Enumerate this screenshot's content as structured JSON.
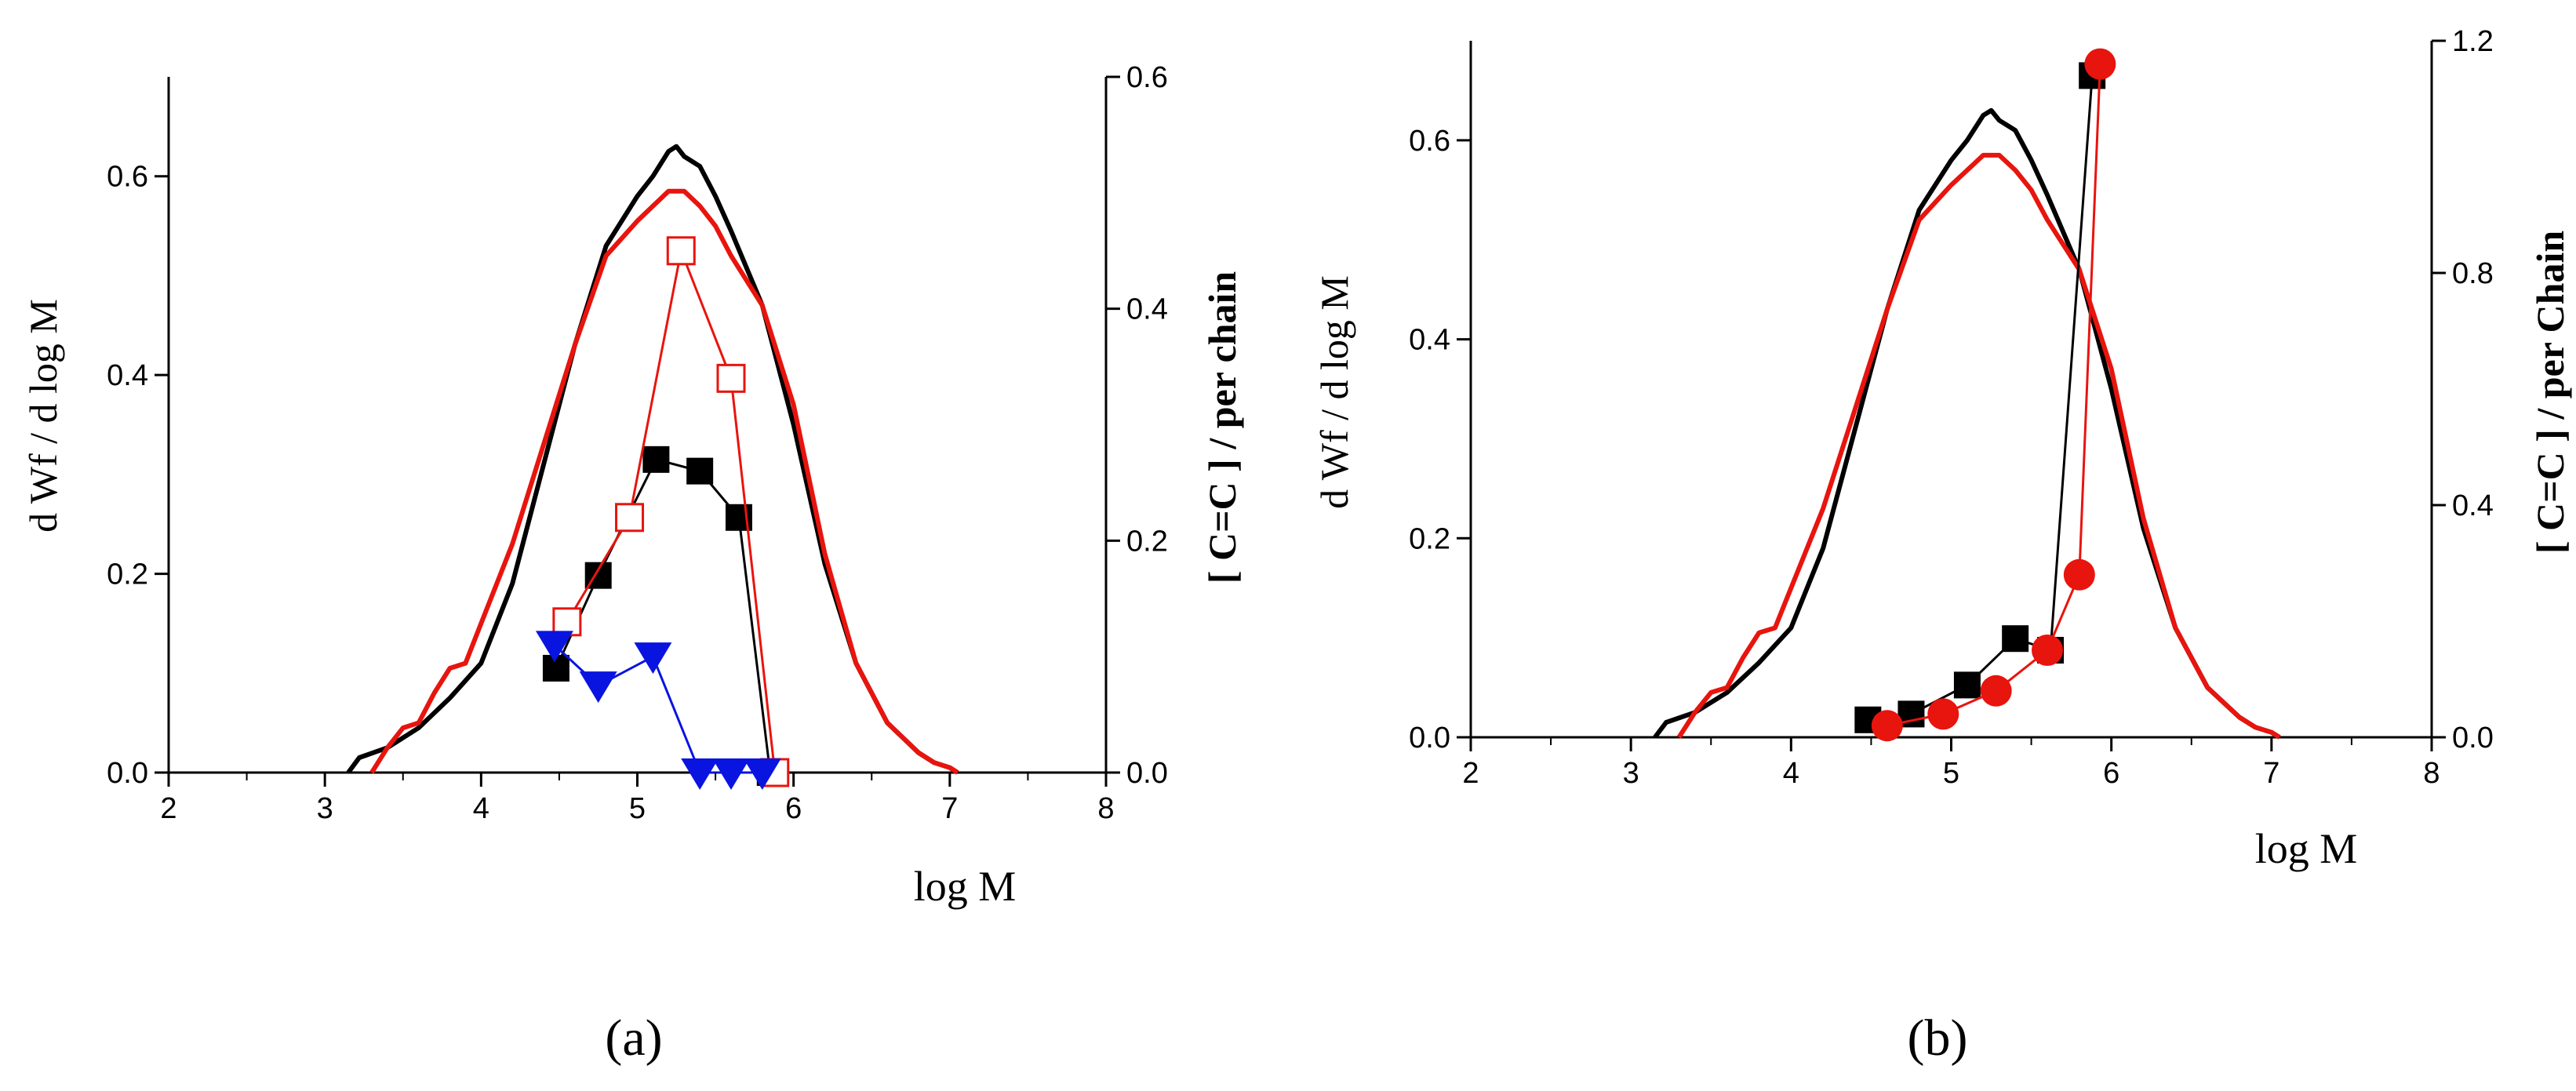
{
  "chart_data": [
    {
      "type": "line",
      "panel_label": "(a)",
      "xlabel": "log M",
      "ylabel_left": "d Wf / d log M",
      "ylabel_right": "[ C=C ] / per chain",
      "xlim": [
        2,
        8
      ],
      "ylim_left": [
        0,
        0.7
      ],
      "ylim_right": [
        0,
        0.6
      ],
      "xticks": [
        2,
        3,
        4,
        5,
        6,
        7,
        8
      ],
      "yticks_left": [
        0.0,
        0.2,
        0.4,
        0.6
      ],
      "yticks_right": [
        0.0,
        0.2,
        0.4,
        0.6
      ],
      "series": [
        {
          "name": "MWD black",
          "kind": "curve",
          "axis": "left",
          "color": "#000000",
          "x": [
            3.15,
            3.22,
            3.4,
            3.6,
            3.8,
            4.0,
            4.2,
            4.4,
            4.6,
            4.8,
            5.0,
            5.1,
            5.2,
            5.25,
            5.3,
            5.35,
            5.4,
            5.5,
            5.6,
            5.8,
            6.0,
            6.2,
            6.4,
            6.6,
            6.8,
            6.9,
            7.0,
            7.05
          ],
          "y": [
            0,
            0.015,
            0.025,
            0.045,
            0.075,
            0.11,
            0.19,
            0.31,
            0.43,
            0.53,
            0.58,
            0.6,
            0.625,
            0.63,
            0.62,
            0.615,
            0.61,
            0.58,
            0.545,
            0.47,
            0.35,
            0.21,
            0.11,
            0.05,
            0.02,
            0.01,
            0.005,
            0
          ]
        },
        {
          "name": "MWD red",
          "kind": "curve",
          "axis": "left",
          "color": "#e8140e",
          "x": [
            3.3,
            3.4,
            3.5,
            3.6,
            3.7,
            3.8,
            3.9,
            4.0,
            4.2,
            4.4,
            4.6,
            4.8,
            5.0,
            5.1,
            5.2,
            5.3,
            5.4,
            5.5,
            5.6,
            5.8,
            6.0,
            6.2,
            6.4,
            6.6,
            6.8,
            6.9,
            7.0,
            7.05
          ],
          "y": [
            0,
            0.025,
            0.045,
            0.05,
            0.08,
            0.105,
            0.11,
            0.15,
            0.23,
            0.33,
            0.43,
            0.52,
            0.555,
            0.57,
            0.585,
            0.585,
            0.57,
            0.55,
            0.52,
            0.47,
            0.37,
            0.22,
            0.11,
            0.05,
            0.02,
            0.01,
            0.005,
            0
          ]
        },
        {
          "name": "filled squares",
          "kind": "markers",
          "marker": "square-filled",
          "axis": "right",
          "color": "#000000",
          "x": [
            4.48,
            4.75,
            5.12,
            5.4,
            5.65,
            5.85
          ],
          "y": [
            0.09,
            0.17,
            0.27,
            0.26,
            0.22,
            0.0
          ]
        },
        {
          "name": "open squares",
          "kind": "markers",
          "marker": "square-open",
          "axis": "right",
          "color": "#e8140e",
          "x": [
            4.55,
            4.95,
            5.28,
            5.6,
            5.88
          ],
          "y": [
            0.13,
            0.22,
            0.45,
            0.34,
            0.0
          ]
        },
        {
          "name": "triangles",
          "kind": "markers",
          "marker": "triangle-down",
          "axis": "right",
          "color": "#0a14e0",
          "x": [
            4.47,
            4.75,
            5.1,
            5.4,
            5.6,
            5.8
          ],
          "y": [
            0.11,
            0.075,
            0.1,
            0.0,
            0.0,
            0.0
          ]
        }
      ]
    },
    {
      "type": "line",
      "panel_label": "(b)",
      "xlabel": "log M",
      "ylabel_left": "d Wf / d log M",
      "ylabel_right": "[ C=C ] / per Chain",
      "xlim": [
        2,
        8
      ],
      "ylim_left": [
        0,
        0.7
      ],
      "ylim_right": [
        0,
        1.2
      ],
      "xticks": [
        2,
        3,
        4,
        5,
        6,
        7,
        8
      ],
      "yticks_left": [
        0.0,
        0.2,
        0.4,
        0.6
      ],
      "yticks_right": [
        0.0,
        0.4,
        0.8,
        1.2
      ],
      "series": [
        {
          "name": "MWD black",
          "kind": "curve",
          "axis": "left",
          "color": "#000000",
          "x": [
            3.15,
            3.22,
            3.4,
            3.6,
            3.8,
            4.0,
            4.2,
            4.4,
            4.6,
            4.8,
            5.0,
            5.1,
            5.2,
            5.25,
            5.3,
            5.35,
            5.4,
            5.5,
            5.6,
            5.8,
            6.0,
            6.2,
            6.4,
            6.6,
            6.8,
            6.9,
            7.0,
            7.05
          ],
          "y": [
            0,
            0.015,
            0.025,
            0.045,
            0.075,
            0.11,
            0.19,
            0.31,
            0.43,
            0.53,
            0.58,
            0.6,
            0.625,
            0.63,
            0.62,
            0.615,
            0.61,
            0.58,
            0.545,
            0.47,
            0.35,
            0.21,
            0.11,
            0.05,
            0.02,
            0.01,
            0.005,
            0
          ]
        },
        {
          "name": "MWD red",
          "kind": "curve",
          "axis": "left",
          "color": "#e8140e",
          "x": [
            3.3,
            3.4,
            3.5,
            3.6,
            3.7,
            3.8,
            3.9,
            4.0,
            4.2,
            4.4,
            4.6,
            4.8,
            5.0,
            5.1,
            5.2,
            5.3,
            5.4,
            5.5,
            5.6,
            5.8,
            6.0,
            6.2,
            6.4,
            6.6,
            6.8,
            6.9,
            7.0,
            7.05
          ],
          "y": [
            0,
            0.025,
            0.045,
            0.05,
            0.08,
            0.105,
            0.11,
            0.15,
            0.23,
            0.33,
            0.43,
            0.52,
            0.555,
            0.57,
            0.585,
            0.585,
            0.57,
            0.55,
            0.52,
            0.47,
            0.37,
            0.22,
            0.11,
            0.05,
            0.02,
            0.01,
            0.005,
            0
          ]
        },
        {
          "name": "filled squares",
          "kind": "markers",
          "marker": "square-filled",
          "axis": "right",
          "color": "#000000",
          "x": [
            4.48,
            4.75,
            5.1,
            5.4,
            5.62,
            5.88
          ],
          "y": [
            0.03,
            0.04,
            0.09,
            0.17,
            0.15,
            1.14
          ]
        },
        {
          "name": "filled circles",
          "kind": "markers",
          "marker": "circle-filled",
          "axis": "right",
          "color": "#e8140e",
          "x": [
            4.6,
            4.95,
            5.28,
            5.6,
            5.8,
            5.93
          ],
          "y": [
            0.02,
            0.04,
            0.08,
            0.15,
            0.28,
            1.16
          ]
        }
      ]
    }
  ]
}
